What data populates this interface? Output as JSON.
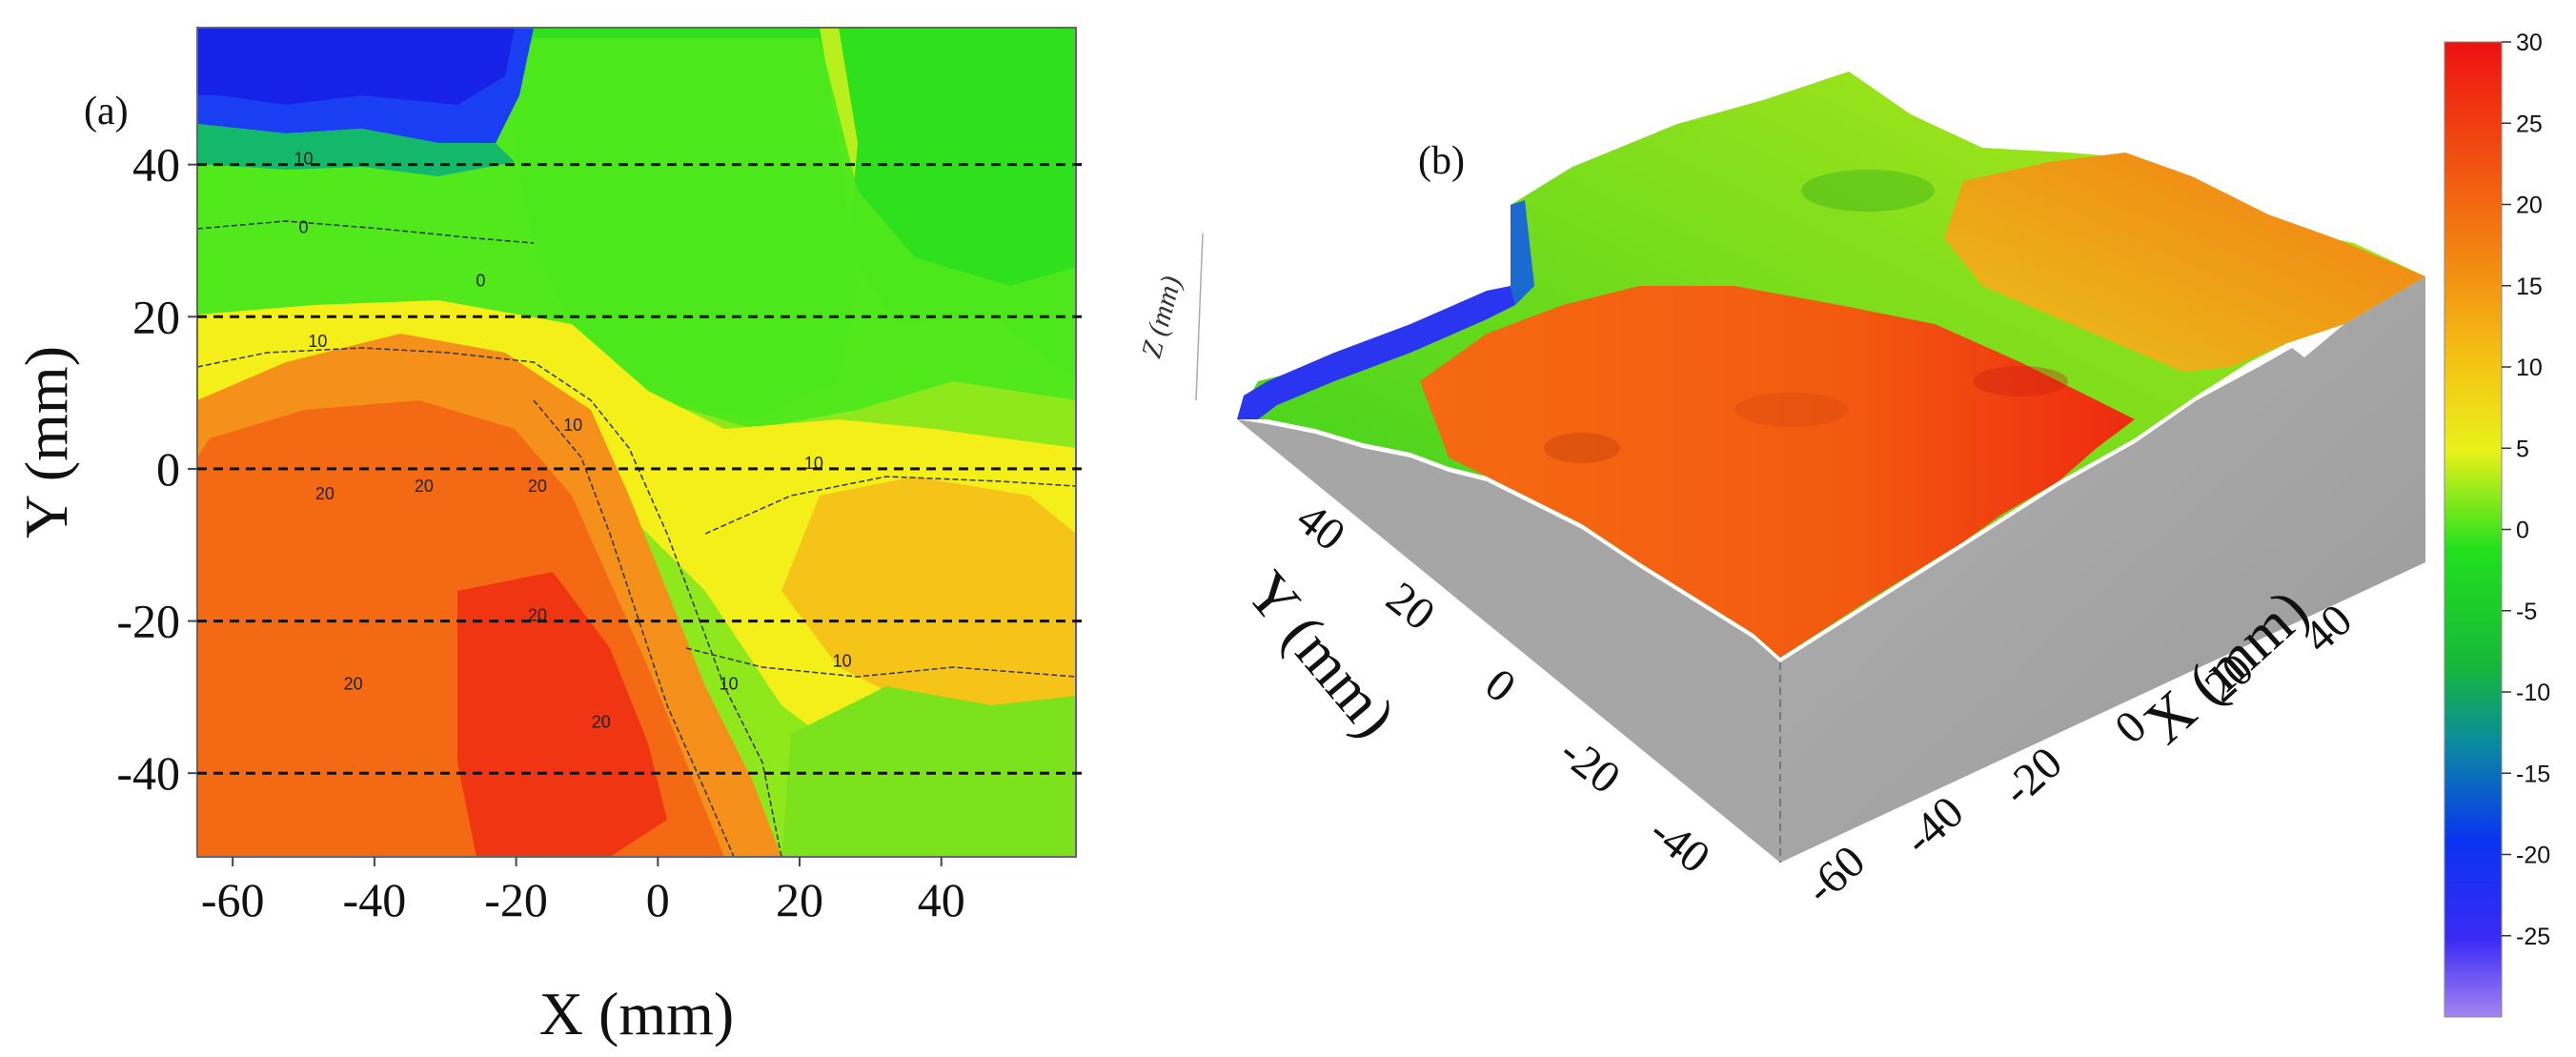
{
  "figure": {
    "panel_a": "(a)",
    "panel_b": "(b)"
  },
  "colors": {
    "c_m30": "#9b7bf0",
    "c_m25": "#6a4cf5",
    "c_m20": "#2f1ff3",
    "c_m15": "#0a33f2",
    "c_m10": "#0a8aa0",
    "c_m5": "#1fc01f",
    "c_0": "#18e018",
    "c_5": "#a6f01a",
    "c_10": "#f1f119",
    "c_15": "#f4c414",
    "c_20": "#f58a12",
    "c_25": "#f25a0f",
    "c_30": "#ee1111",
    "wall": "#a3a3a3"
  },
  "chart_data": [
    {
      "type": "heatmap",
      "title": "",
      "xlabel": "X (mm)",
      "ylabel": "Y (mm)",
      "xlim": [
        -65,
        59
      ],
      "ylim": [
        -51,
        58
      ],
      "xticks": [
        -60,
        -40,
        -20,
        0,
        20,
        40
      ],
      "yticks": [
        -40,
        -20,
        0,
        20,
        40
      ],
      "dashed_lines_y": [
        40,
        20,
        0,
        -20,
        -40
      ],
      "regions": [
        {
          "name": "blue trough",
          "value": -20,
          "x": [
            -65,
            -24
          ],
          "y": [
            45,
            58
          ]
        },
        {
          "name": "green plateau",
          "value": 0,
          "x": [
            -24,
            59
          ],
          "y": [
            0,
            58
          ]
        },
        {
          "name": "orange mound",
          "value": 20,
          "x": [
            -65,
            -8
          ],
          "y": [
            -51,
            20
          ]
        },
        {
          "name": "yellow region",
          "value": 10,
          "x": [
            -8,
            59
          ],
          "y": [
            -40,
            5
          ]
        }
      ],
      "contour_labels": [
        {
          "text": "10",
          "x": -50,
          "y": 40
        },
        {
          "text": "0",
          "x": -50,
          "y": 31
        },
        {
          "text": "0",
          "x": -25,
          "y": 24
        },
        {
          "text": "10",
          "x": -48,
          "y": 16
        },
        {
          "text": "10",
          "x": -12,
          "y": 5
        },
        {
          "text": "20",
          "x": -47,
          "y": -4
        },
        {
          "text": "20",
          "x": -33,
          "y": -3
        },
        {
          "text": "20",
          "x": -17,
          "y": -3
        },
        {
          "text": "10",
          "x": 22,
          "y": 0
        },
        {
          "text": "20",
          "x": -17,
          "y": -20
        },
        {
          "text": "20",
          "x": -43,
          "y": -29
        },
        {
          "text": "10",
          "x": 10,
          "y": -29
        },
        {
          "text": "10",
          "x": 26,
          "y": -26
        },
        {
          "text": "20",
          "x": -8,
          "y": -34
        }
      ]
    },
    {
      "type": "surface3d",
      "xlabel": "X (mm)",
      "ylabel": "Y (mm)",
      "zlabel": "Z (mm)",
      "xticks": [
        -60,
        -40,
        -20,
        0,
        20,
        40
      ],
      "yticks": [
        -40,
        -20,
        0,
        20,
        40
      ]
    },
    {
      "type": "colorbar",
      "zlim": [
        -30,
        30
      ],
      "ticks": [
        30,
        25,
        20,
        15,
        10,
        5,
        0,
        -5,
        -10,
        -15,
        -20,
        -25
      ],
      "tick_labels": [
        "30",
        "25",
        "20",
        "15",
        "10",
        "5",
        "0",
        "-5",
        "-10",
        "-15",
        "-20",
        "-25"
      ]
    }
  ]
}
